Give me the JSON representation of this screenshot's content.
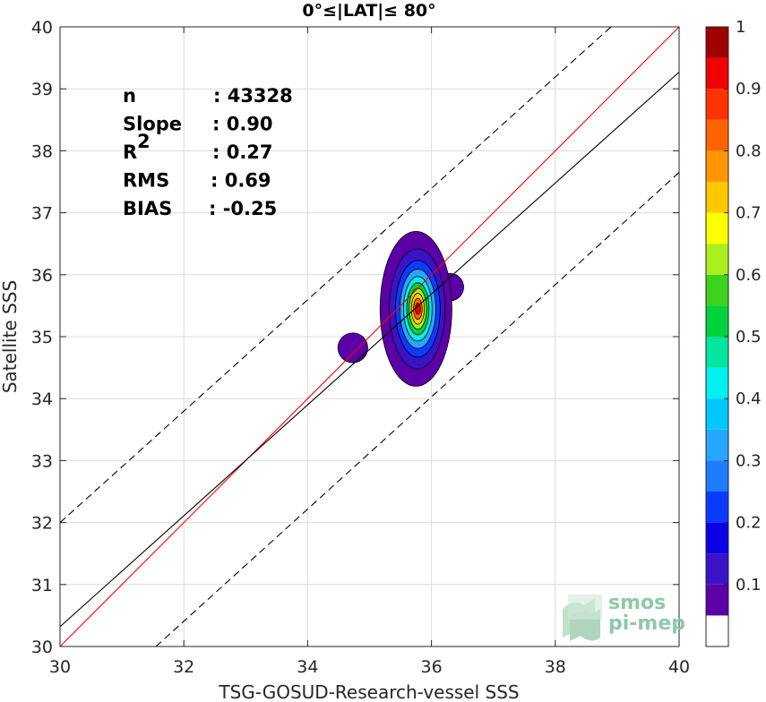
{
  "chart_data": {
    "type": "heatmap",
    "title": "0°≤|LAT|≤ 80°",
    "xlabel": "TSG-GOSUD-Research-vessel SSS",
    "ylabel": "Satellite SSS",
    "xlim": [
      30,
      40
    ],
    "ylim": [
      30,
      40
    ],
    "x_ticks": [
      "30",
      "32",
      "34",
      "36",
      "38",
      "40"
    ],
    "y_ticks": [
      "30",
      "31",
      "32",
      "33",
      "34",
      "35",
      "36",
      "37",
      "38",
      "39",
      "40"
    ],
    "grid": true,
    "stats": [
      {
        "label": "n",
        "value": ": 43328"
      },
      {
        "label": "Slope",
        "value": ": 0.90"
      },
      {
        "label": "R",
        "sup": "2",
        "value": ": 0.27"
      },
      {
        "label": "RMS",
        "value": ": 0.69"
      },
      {
        "label": "BIAS",
        "value": ": -0.25"
      }
    ],
    "lines": [
      {
        "name": "identity",
        "color": "#ff0000",
        "style": "solid",
        "points": [
          [
            30,
            30
          ],
          [
            40,
            40
          ]
        ]
      },
      {
        "name": "regression",
        "color": "#000000",
        "style": "solid",
        "points": [
          [
            30,
            30.32
          ],
          [
            40,
            39.27
          ]
        ]
      },
      {
        "name": "upper-bound",
        "color": "#000000",
        "style": "dashed",
        "points": [
          [
            30,
            32.0
          ],
          [
            38.9,
            40.0
          ]
        ]
      },
      {
        "name": "lower-bound",
        "color": "#000000",
        "style": "dashed",
        "points": [
          [
            31.55,
            30.0
          ],
          [
            40,
            37.65
          ]
        ]
      }
    ],
    "density_peak": {
      "x": 35.78,
      "y": 35.45
    },
    "contour_levels": [
      0.05,
      0.1,
      0.2,
      0.3,
      0.4,
      0.5,
      0.6,
      0.7,
      0.8,
      0.9
    ],
    "contours": [
      {
        "level": 0.05,
        "cx": 35.75,
        "cy": 35.45,
        "rx": 0.58,
        "ry": 1.25
      },
      {
        "level": 0.1,
        "cx": 35.77,
        "cy": 35.45,
        "rx": 0.45,
        "ry": 0.97
      },
      {
        "level": 0.2,
        "cx": 35.78,
        "cy": 35.45,
        "rx": 0.36,
        "ry": 0.78
      },
      {
        "level": 0.3,
        "cx": 35.78,
        "cy": 35.45,
        "rx": 0.29,
        "ry": 0.64
      },
      {
        "level": 0.4,
        "cx": 35.78,
        "cy": 35.45,
        "rx": 0.23,
        "ry": 0.52
      },
      {
        "level": 0.5,
        "cx": 35.78,
        "cy": 35.45,
        "rx": 0.18,
        "ry": 0.42
      },
      {
        "level": 0.6,
        "cx": 35.78,
        "cy": 35.45,
        "rx": 0.14,
        "ry": 0.33
      },
      {
        "level": 0.7,
        "cx": 35.78,
        "cy": 35.45,
        "rx": 0.105,
        "ry": 0.25
      },
      {
        "level": 0.8,
        "cx": 35.78,
        "cy": 35.45,
        "rx": 0.07,
        "ry": 0.17
      },
      {
        "level": 0.9,
        "cx": 35.78,
        "cy": 35.45,
        "rx": 0.04,
        "ry": 0.09
      }
    ],
    "side_blobs": [
      {
        "level": 0.05,
        "cx": 34.73,
        "cy": 34.82,
        "rx": 0.24,
        "ry": 0.24
      },
      {
        "level": 0.05,
        "cx": 36.3,
        "cy": 35.8,
        "rx": 0.22,
        "ry": 0.22
      }
    ]
  },
  "colorbar": {
    "ticks": [
      "0.1",
      "0.2",
      "0.3",
      "0.4",
      "0.5",
      "0.6",
      "0.7",
      "0.8",
      "0.9",
      "1"
    ],
    "bands": [
      {
        "from": 0.0,
        "to": 0.05,
        "color": "#ffffff"
      },
      {
        "from": 0.05,
        "to": 0.1,
        "color": "#5b00a6"
      },
      {
        "from": 0.1,
        "to": 0.15,
        "color": "#3a12c8"
      },
      {
        "from": 0.15,
        "to": 0.2,
        "color": "#0a00e6"
      },
      {
        "from": 0.2,
        "to": 0.25,
        "color": "#0a3cff"
      },
      {
        "from": 0.25,
        "to": 0.3,
        "color": "#1f7bff"
      },
      {
        "from": 0.3,
        "to": 0.35,
        "color": "#26a6ff"
      },
      {
        "from": 0.35,
        "to": 0.4,
        "color": "#00c8ff"
      },
      {
        "from": 0.4,
        "to": 0.45,
        "color": "#00f0f0"
      },
      {
        "from": 0.45,
        "to": 0.5,
        "color": "#00e6a0"
      },
      {
        "from": 0.5,
        "to": 0.55,
        "color": "#00d23c"
      },
      {
        "from": 0.55,
        "to": 0.6,
        "color": "#3cd21e"
      },
      {
        "from": 0.6,
        "to": 0.65,
        "color": "#aaf01e"
      },
      {
        "from": 0.65,
        "to": 0.7,
        "color": "#ffff00"
      },
      {
        "from": 0.7,
        "to": 0.75,
        "color": "#ffc800"
      },
      {
        "from": 0.75,
        "to": 0.8,
        "color": "#ff9600"
      },
      {
        "from": 0.8,
        "to": 0.85,
        "color": "#ff6400"
      },
      {
        "from": 0.85,
        "to": 0.9,
        "color": "#ff3200"
      },
      {
        "from": 0.9,
        "to": 0.95,
        "color": "#f00000"
      },
      {
        "from": 0.95,
        "to": 1.0,
        "color": "#a00000"
      }
    ]
  },
  "logo": {
    "line1": "smos",
    "line2": "pi-mep"
  }
}
